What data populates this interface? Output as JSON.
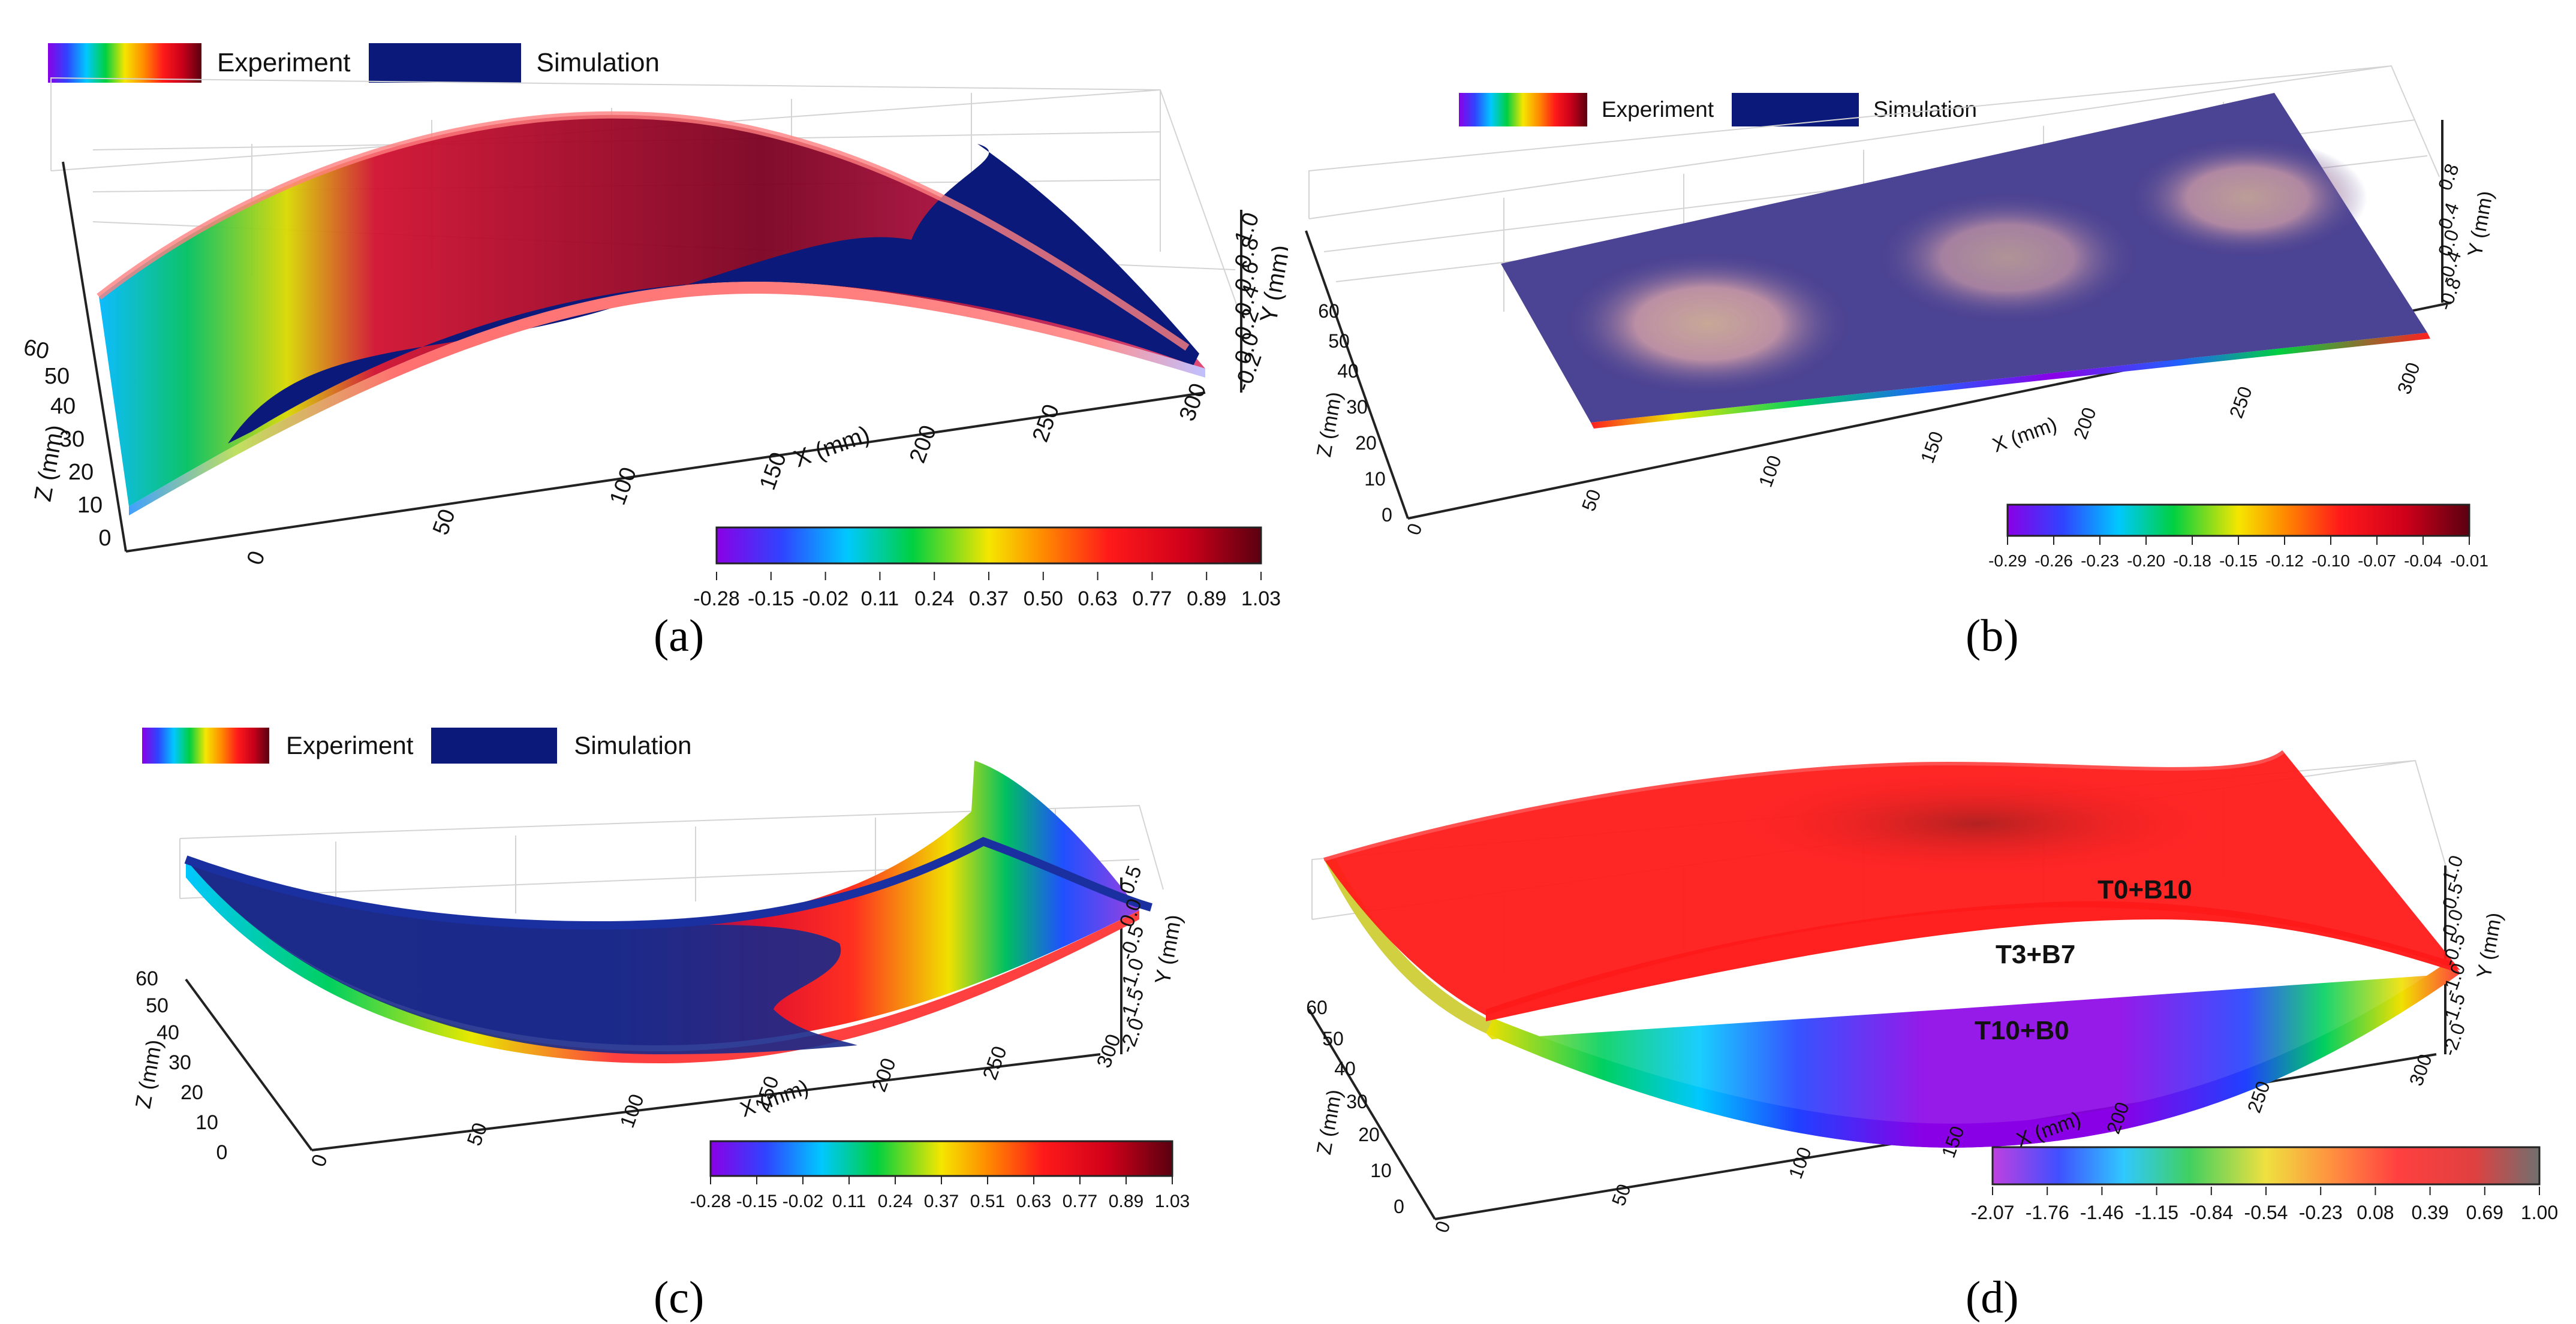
{
  "colors": {
    "simulation": "#0b1a7a",
    "rainbow": [
      "#8a00e6",
      "#2f44ff",
      "#00c8ff",
      "#00d040",
      "#f5e600",
      "#ff8a00",
      "#ff1a1a",
      "#ee0000",
      "#5a0010"
    ]
  },
  "chart_data": [
    {
      "panel": "a",
      "type": "surface3d",
      "caption": "(a)",
      "legend": [
        "Experiment",
        "Simulation"
      ],
      "x_axis": {
        "label": "X (mm)",
        "ticks": [
          "0",
          "50",
          "100",
          "150",
          "200",
          "250",
          "300"
        ]
      },
      "z_axis": {
        "label": "Z (mm)",
        "ticks": [
          "0",
          "10",
          "20",
          "30",
          "40",
          "50",
          "60"
        ]
      },
      "y_axis": {
        "label": "Y (mm)",
        "ticks": [
          "-0.2",
          "0.0",
          "0.2",
          "0.4",
          "0.6",
          "0.8",
          "1.0"
        ]
      },
      "colorbar": {
        "ticks": [
          "-0.28",
          "-0.15",
          "-0.02",
          "0.11",
          "0.24",
          "0.37",
          "0.50",
          "0.63",
          "0.77",
          "0.89",
          "1.03"
        ],
        "range": [
          -0.28,
          1.03
        ]
      }
    },
    {
      "panel": "b",
      "type": "surface3d",
      "caption": "(b)",
      "legend": [
        "Experiment",
        "Simulation"
      ],
      "x_axis": {
        "label": "X (mm)",
        "ticks": [
          "0",
          "50",
          "100",
          "150",
          "200",
          "250",
          "300"
        ]
      },
      "z_axis": {
        "label": "Z (mm)",
        "ticks": [
          "0",
          "10",
          "20",
          "30",
          "40",
          "50",
          "60"
        ]
      },
      "y_axis": {
        "label": "Y (mm)",
        "ticks": [
          "-0.8",
          "-0.4",
          "0.0",
          "0.4",
          "0.8"
        ]
      },
      "colorbar": {
        "ticks": [
          "-0.29",
          "-0.26",
          "-0.23",
          "-0.20",
          "-0.18",
          "-0.15",
          "-0.12",
          "-0.10",
          "-0.07",
          "-0.04",
          "-0.01"
        ],
        "range": [
          -0.29,
          -0.01
        ]
      }
    },
    {
      "panel": "c",
      "type": "surface3d",
      "caption": "(c)",
      "legend": [
        "Experiment",
        "Simulation"
      ],
      "x_axis": {
        "label": "X (mm)",
        "ticks": [
          "0",
          "50",
          "100",
          "150",
          "200",
          "250",
          "300"
        ]
      },
      "z_axis": {
        "label": "Z (mm)",
        "ticks": [
          "0",
          "10",
          "20",
          "30",
          "40",
          "50",
          "60"
        ]
      },
      "y_axis": {
        "label": "Y (mm)",
        "ticks": [
          "-2.0",
          "-1.5",
          "-1.0",
          "-0.5",
          "0.0",
          "0.5"
        ]
      },
      "colorbar": {
        "ticks": [
          "-0.28",
          "-0.15",
          "-0.02",
          "0.11",
          "0.24",
          "0.37",
          "0.51",
          "0.63",
          "0.77",
          "0.89",
          "1.03"
        ],
        "range": [
          -0.28,
          1.03
        ]
      }
    },
    {
      "panel": "d",
      "type": "surface3d",
      "caption": "(d)",
      "legend": [],
      "surface_labels": [
        "T0+B10",
        "T3+B7",
        "T10+B0"
      ],
      "x_axis": {
        "label": "X (mm)",
        "ticks": [
          "0",
          "50",
          "100",
          "150",
          "200",
          "250",
          "300"
        ]
      },
      "z_axis": {
        "label": "Z (mm)",
        "ticks": [
          "0",
          "10",
          "20",
          "30",
          "40",
          "50",
          "60"
        ]
      },
      "y_axis": {
        "label": "Y (mm)",
        "ticks": [
          "-2.0",
          "-1.5",
          "-1.0",
          "-0.5",
          "0.0",
          "0.5",
          "1.0"
        ]
      },
      "colorbar": {
        "ticks": [
          "-2.07",
          "-1.76",
          "-1.46",
          "-1.15",
          "-0.84",
          "-0.54",
          "-0.23",
          "0.08",
          "0.39",
          "0.69",
          "1.00"
        ],
        "range": [
          -2.07,
          1.0
        ]
      }
    }
  ]
}
